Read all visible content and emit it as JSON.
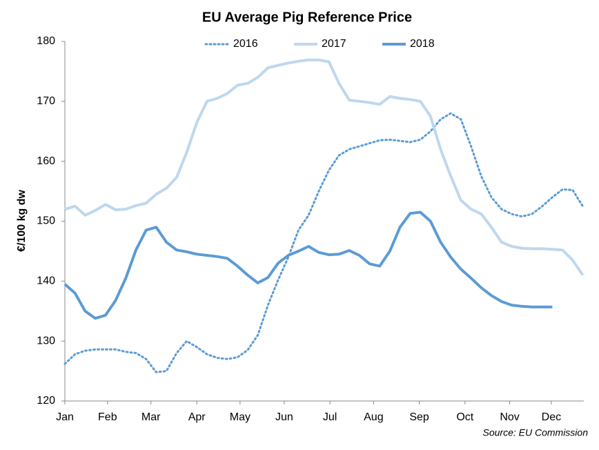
{
  "chart_data": {
    "type": "line",
    "title": "EU Average Pig Reference Price",
    "y_axis_label": "€/100 kg dw",
    "source": "Source: EU Commission",
    "x": [
      1,
      2,
      3,
      4,
      5,
      6,
      7,
      8,
      9,
      10,
      11,
      12,
      13,
      14,
      15,
      16,
      17,
      18,
      19,
      20,
      21,
      22,
      23,
      24,
      25,
      26,
      27,
      28,
      29,
      30,
      31,
      32,
      33,
      34,
      35,
      36,
      37,
      38,
      39,
      40,
      41,
      42,
      43,
      44,
      45,
      46,
      47,
      48,
      49,
      50,
      51,
      52
    ],
    "xlim": [
      1,
      52.1
    ],
    "xticks": [
      {
        "value": 1,
        "label": "Jan"
      },
      {
        "value": 5.2,
        "label": "Feb"
      },
      {
        "value": 9.47,
        "label": "Mar"
      },
      {
        "value": 13.99,
        "label": "Apr"
      },
      {
        "value": 18.25,
        "label": "May"
      },
      {
        "value": 22.6,
        "label": "Jun"
      },
      {
        "value": 27.1,
        "label": "Jul"
      },
      {
        "value": 31.4,
        "label": "Aug"
      },
      {
        "value": 35.9,
        "label": "Sep"
      },
      {
        "value": 40.4,
        "label": "Oct"
      },
      {
        "value": 44.8,
        "label": "Nov"
      },
      {
        "value": 48.9,
        "label": "Dec"
      }
    ],
    "ylim": [
      120,
      180
    ],
    "yticks": [
      120,
      130,
      140,
      150,
      160,
      170,
      180
    ],
    "grid": false,
    "legend": "top",
    "series": [
      {
        "name": "2016",
        "color": "#5b9bd5",
        "dash": "dotted",
        "values": [
          126.2,
          127.8,
          128.4,
          128.6,
          128.6,
          128.6,
          128.2,
          128,
          127,
          124.8,
          125,
          128,
          130,
          129,
          127.8,
          127.2,
          127,
          127.3,
          128.5,
          131,
          136,
          140.2,
          144,
          148.5,
          151,
          155,
          158.5,
          161,
          162,
          162.5,
          163,
          163.5,
          163.6,
          163.4,
          163.2,
          163.6,
          165,
          167,
          168,
          167,
          162.5,
          157.5,
          154,
          152,
          151.2,
          150.8,
          151.2,
          152.5,
          154,
          155.3,
          155.2,
          152.5
        ]
      },
      {
        "name": "2017",
        "color": "#bdd7ee",
        "dash": "solid",
        "values": [
          152,
          152.5,
          151,
          151.8,
          152.8,
          151.9,
          152,
          152.6,
          153,
          154.5,
          155.5,
          157.3,
          161.5,
          166.5,
          170,
          170.5,
          171.3,
          172.7,
          173,
          174,
          175.6,
          176,
          176.4,
          176.7,
          176.9,
          176.9,
          176.6,
          173,
          170.2,
          170,
          169.8,
          169.5,
          170.8,
          170.5,
          170.3,
          170,
          167.5,
          162,
          157.5,
          153.5,
          152,
          151.2,
          149,
          146.5,
          145.8,
          145.5,
          145.4,
          145.4,
          145.3,
          145.2,
          143.5,
          141
        ]
      },
      {
        "name": "2018",
        "color": "#5b9bd5",
        "dash": "solid",
        "values": [
          139.5,
          138,
          135,
          133.8,
          134.3,
          136.8,
          140.5,
          145.2,
          148.5,
          149,
          146.5,
          145.2,
          144.9,
          144.5,
          144.3,
          144.1,
          143.8,
          142.5,
          141,
          139.7,
          140.6,
          143,
          144.3,
          145,
          145.8,
          144.8,
          144.4,
          144.5,
          145.1,
          144.3,
          142.9,
          142.5,
          145,
          149,
          151.3,
          151.5,
          150,
          146.5,
          144,
          142,
          140.5,
          138.9,
          137.6,
          136.6,
          136,
          135.8,
          135.7,
          135.7,
          135.7,
          null,
          null,
          null
        ]
      }
    ]
  }
}
